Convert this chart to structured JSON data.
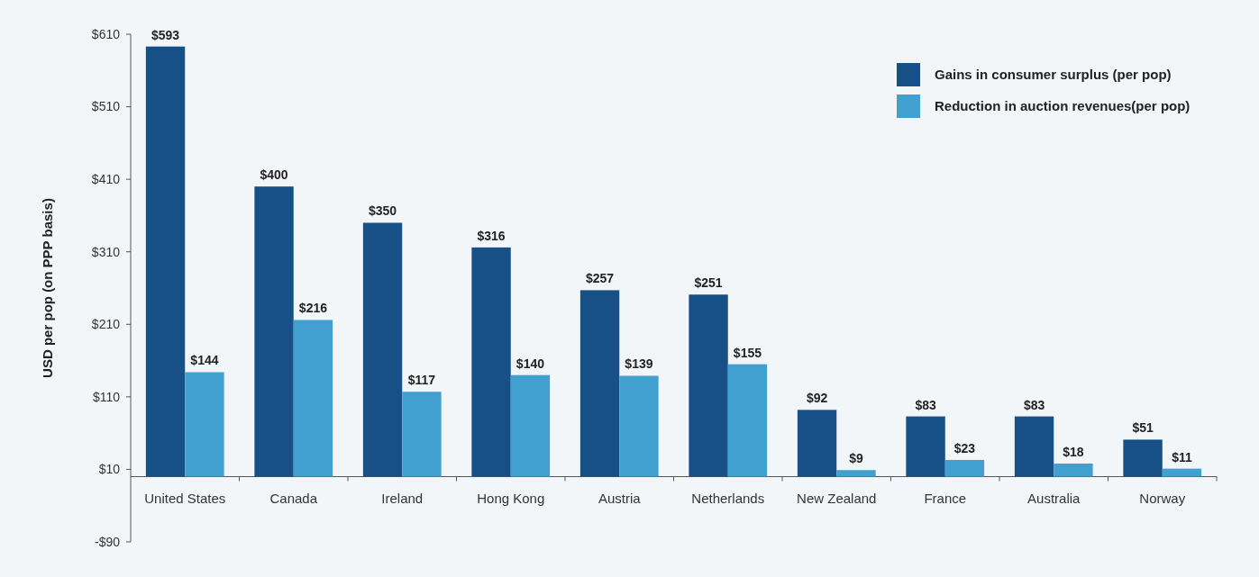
{
  "chart_data": {
    "type": "bar",
    "ylabel": "USD per pop (on PPP basis)",
    "categories": [
      "United States",
      "Canada",
      "Ireland",
      "Hong Kong",
      "Austria",
      "Netherlands",
      "New Zealand",
      "France",
      "Australia",
      "Norway"
    ],
    "series": [
      {
        "name": "Gains in consumer surplus (per pop)",
        "color": "#174f87",
        "values": [
          593,
          400,
          350,
          316,
          257,
          251,
          92,
          83,
          83,
          51
        ],
        "value_labels": [
          "$593",
          "$400",
          "$350",
          "$316",
          "$257",
          "$251",
          "$92",
          "$83",
          "$83",
          "$51"
        ]
      },
      {
        "name": "Reduction in auction revenues(per pop)",
        "color": "#42a0d0",
        "values": [
          144,
          216,
          117,
          140,
          139,
          155,
          9,
          23,
          18,
          11
        ],
        "value_labels": [
          "$144",
          "$216",
          "$117",
          "$140",
          "$139",
          "$155",
          "$9",
          "$23",
          "$18",
          "$11"
        ]
      }
    ],
    "ylim": [
      -90,
      610
    ],
    "yticks": [
      {
        "value": -90,
        "label": "-$90"
      },
      {
        "value": 10,
        "label": "$10"
      },
      {
        "value": 110,
        "label": "$110"
      },
      {
        "value": 210,
        "label": "$210"
      },
      {
        "value": 310,
        "label": "$310"
      },
      {
        "value": 410,
        "label": "$410"
      },
      {
        "value": 510,
        "label": "$510"
      },
      {
        "value": 610,
        "label": "$610"
      }
    ],
    "grid": false,
    "legend": "top right"
  }
}
